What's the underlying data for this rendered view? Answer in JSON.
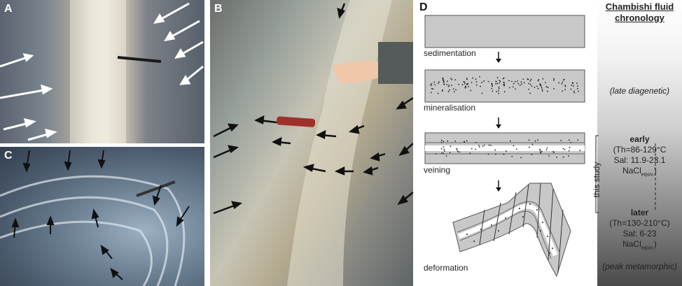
{
  "panels": {
    "a_label": "A",
    "b_label": "B",
    "c_label": "C",
    "d_label": "D"
  },
  "diagram": {
    "steps": [
      "sedimentation",
      "mineralisation",
      "veining",
      "deformation"
    ]
  },
  "chronology": {
    "title_line1": "Chambishi fluid",
    "title_line2": "chronology",
    "late_diagenetic": "(late diagenetic)",
    "early": "early",
    "early_th": "(Th=86-129°C",
    "early_sal": "Sal: 11.9-23.1",
    "early_nacl": "NaCl",
    "early_nacl_sub": "equiv.",
    "this_study": "this study",
    "later": "later",
    "later_th": "(Th=130-210°C)",
    "later_sal": "Sal: 6-23",
    "later_nacl": "NaCl",
    "later_nacl_sub": "equiv.",
    "peak_metamorphic": "(peak metamorphic)"
  },
  "colors": {
    "diagram_grey": "#c8c8c8",
    "chronology_gradient_top": "#ffffff",
    "chronology_gradient_bottom": "#3a3a3a",
    "arrow_white": "#ffffff",
    "arrow_black": "#111111"
  }
}
